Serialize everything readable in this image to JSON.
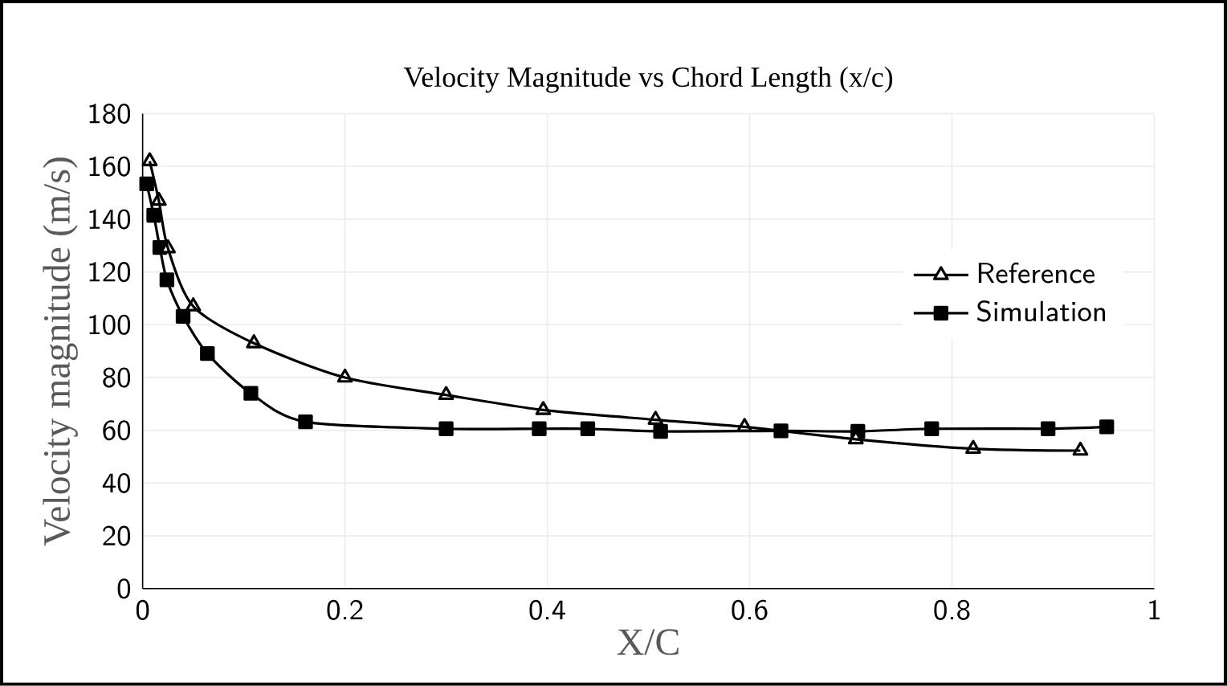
{
  "chart_data": {
    "type": "line",
    "title": "Velocity Magnitude vs  Chord Length (x/c)",
    "xlabel": "X/C",
    "ylabel": "Velocity magnitude (m/s)",
    "xlim": [
      0,
      1
    ],
    "xticks": [
      0,
      0.2,
      0.4,
      0.6,
      0.8,
      1
    ],
    "ylim": [
      0,
      180
    ],
    "yticks": [
      0,
      20,
      40,
      60,
      80,
      100,
      120,
      140,
      160,
      180
    ],
    "grid": true,
    "legend": "right",
    "series": [
      {
        "name": "Reference",
        "color": "#000000",
        "marker": "triangle",
        "x": [
          0.007,
          0.016,
          0.025,
          0.05,
          0.11,
          0.2,
          0.3,
          0.396,
          0.507,
          0.595,
          0.705,
          0.821,
          0.927
        ],
        "values": [
          162,
          147,
          129,
          107,
          93,
          80,
          73.4,
          67.7,
          64,
          61.3,
          56.6,
          53,
          52.3
        ]
      },
      {
        "name": "Simulation",
        "color": "#000000",
        "marker": "square",
        "x": [
          0.004,
          0.011,
          0.017,
          0.024,
          0.04,
          0.064,
          0.107,
          0.161,
          0.3,
          0.392,
          0.44,
          0.512,
          0.631,
          0.707,
          0.78,
          0.895,
          0.953
        ],
        "values": [
          153.4,
          141.5,
          129.3,
          117,
          103.2,
          89.1,
          74,
          63.2,
          60.6,
          60.6,
          60.6,
          59.6,
          59.8,
          59.6,
          60.6,
          60.6,
          61.3
        ]
      }
    ]
  }
}
